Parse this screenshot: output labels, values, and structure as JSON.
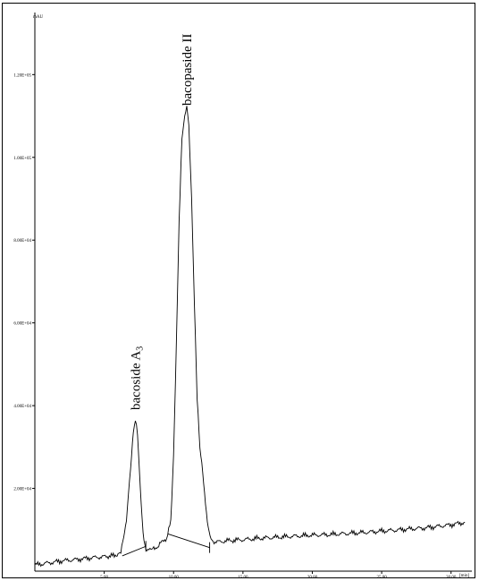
{
  "chart_data": {
    "type": "line",
    "title": "",
    "xlabel": "[min]",
    "ylabel": "mAU",
    "xlim": [
      0,
      31.5
    ],
    "ylim": [
      0,
      135000
    ],
    "x_ticks": [
      {
        "value": 5,
        "label": "5.00"
      },
      {
        "value": 10,
        "label": "10.00"
      },
      {
        "value": 15,
        "label": "15.00"
      },
      {
        "value": 20,
        "label": "20.00"
      },
      {
        "value": 25,
        "label": "25.00"
      },
      {
        "value": 30,
        "label": "30.00"
      }
    ],
    "y_ticks": [
      {
        "value": 20000,
        "label": "2.00E+04"
      },
      {
        "value": 40000,
        "label": "4.00E+04"
      },
      {
        "value": 60000,
        "label": "6.00E+04"
      },
      {
        "value": 80000,
        "label": "8.00E+04"
      },
      {
        "value": 100000,
        "label": "1.00E+05"
      },
      {
        "value": 120000,
        "label": "1.20E+05"
      }
    ],
    "grid": false,
    "series": [
      {
        "x": [
          0.0,
          1.0,
          2.0,
          3.0,
          4.0,
          5.0,
          5.8,
          6.2,
          6.6,
          6.9,
          7.1,
          7.25,
          7.4,
          7.6,
          7.8,
          8.0,
          8.3,
          8.7,
          9.0,
          9.5,
          9.8,
          10.0,
          10.2,
          10.4,
          10.6,
          10.8,
          10.95,
          11.1,
          11.3,
          11.5,
          11.7,
          11.9,
          12.1,
          12.3,
          12.5,
          12.7,
          13.0,
          13.5,
          14.0,
          15.0,
          16.0,
          17.0,
          18.0,
          19.0,
          20.0,
          21.0,
          22.0,
          23.0,
          24.0,
          25.0,
          26.0,
          27.0,
          28.0,
          29.0,
          30.0,
          31.0
        ],
        "y": [
          1500,
          2000,
          2500,
          2800,
          3200,
          3500,
          3800,
          5000,
          12000,
          25000,
          34000,
          36500,
          33000,
          20000,
          9000,
          5500,
          5000,
          5500,
          6500,
          8000,
          12000,
          28000,
          55000,
          85000,
          105000,
          110000,
          112000,
          108000,
          90000,
          65000,
          42000,
          30000,
          24000,
          16000,
          10000,
          7500,
          7000,
          7200,
          7400,
          7600,
          7900,
          8100,
          8300,
          8500,
          8700,
          8800,
          9000,
          9200,
          9400,
          9700,
          9900,
          10200,
          10400,
          10800,
          11200,
          11800
        ]
      }
    ],
    "baselines": [
      {
        "x": [
          6.3,
          8.0
        ],
        "y": [
          3700,
          6000
        ]
      },
      {
        "x": [
          9.6,
          12.6
        ],
        "y": [
          9000,
          5700
        ]
      }
    ],
    "annotations": [
      {
        "text": "bacoside A",
        "sub": "3",
        "x": 7.25
      },
      {
        "text": "bacopaside II",
        "sub": "",
        "x": 10.95
      }
    ]
  }
}
